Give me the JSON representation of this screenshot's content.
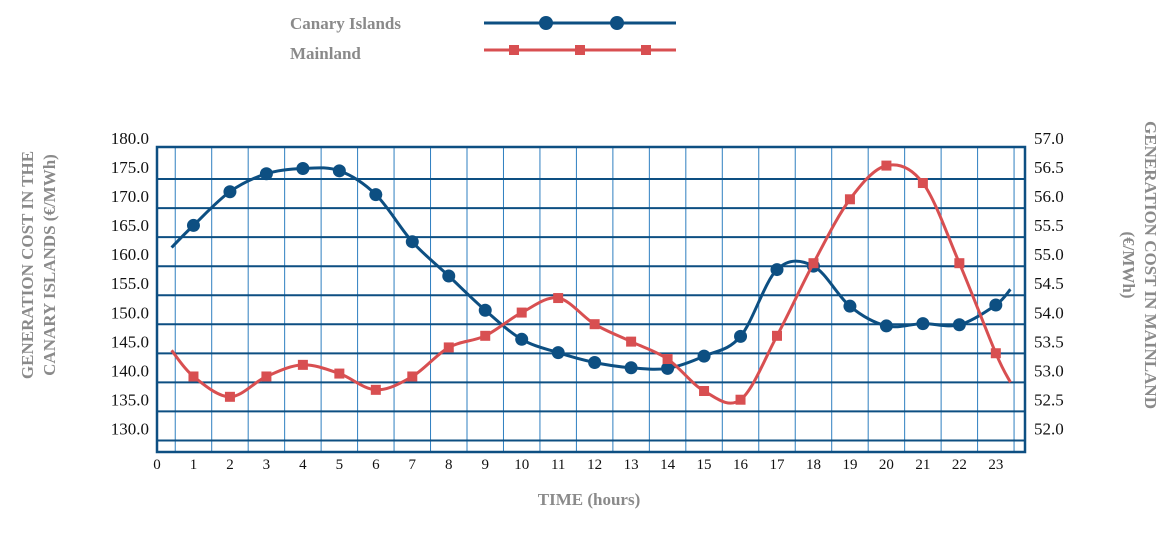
{
  "chart_data": {
    "type": "line",
    "x": [
      1,
      2,
      3,
      4,
      5,
      6,
      7,
      8,
      9,
      10,
      11,
      12,
      13,
      14,
      15,
      16,
      17,
      18,
      19,
      20,
      21,
      22,
      23
    ],
    "x_ticks": [
      "0",
      "1",
      "2",
      "3",
      "4",
      "5",
      "6",
      "7",
      "8",
      "9",
      "10",
      "11",
      "12",
      "13",
      "14",
      "15",
      "16",
      "17",
      "18",
      "19",
      "20",
      "21",
      "22",
      "23"
    ],
    "xlabel": "TIME (hours)",
    "ylabel_left": "GENERATION COST IN THE CANARY ISLANDS (€/MWh)",
    "ylabel_right": "GENERATION COST IN MAINLAND (€/MWh)",
    "y_left_ticks": [
      "180.0",
      "175.0",
      "170.0",
      "165.0",
      "160.0",
      "155.0",
      "150.0",
      "145.0",
      "140.0",
      "135.0",
      "130.0"
    ],
    "y_right_ticks": [
      "57.0",
      "56.5",
      "56.0",
      "55.5",
      "55.0",
      "54.5",
      "54.0",
      "53.5",
      "53.0",
      "52.5",
      "52.0"
    ],
    "ylim_left": [
      127.5,
      180
    ],
    "ylim_right": [
      51.75,
      57
    ],
    "grid": true,
    "legend_position": "top-center",
    "series": [
      {
        "name": "Canary Islands",
        "axis": "left",
        "color": "#0d4f82",
        "marker": "circle",
        "values": [
          166.5,
          172.3,
          175.4,
          176.3,
          175.9,
          171.8,
          163.7,
          157.8,
          151.9,
          146.9,
          144.6,
          142.9,
          142.0,
          141.9,
          144.0,
          147.4,
          158.9,
          159.5,
          152.6,
          149.2,
          149.6,
          149.4,
          152.8
        ],
        "line_start": {
          "x": 0.4,
          "y": 162.7
        },
        "line_end": {
          "x": 23.4,
          "y": 155.5
        }
      },
      {
        "name": "Mainland",
        "axis": "right",
        "color": "#d84f51",
        "marker": "square",
        "values": [
          53.05,
          52.7,
          53.05,
          53.25,
          53.1,
          52.82,
          53.05,
          53.55,
          53.75,
          54.15,
          54.4,
          53.95,
          53.65,
          53.35,
          52.8,
          52.65,
          53.75,
          55.0,
          56.1,
          56.68,
          56.38,
          55.0,
          53.45
        ],
        "line_start": {
          "x": 0.4,
          "y": 53.5
        },
        "line_end": {
          "x": 23.4,
          "y": 52.95
        }
      }
    ]
  }
}
